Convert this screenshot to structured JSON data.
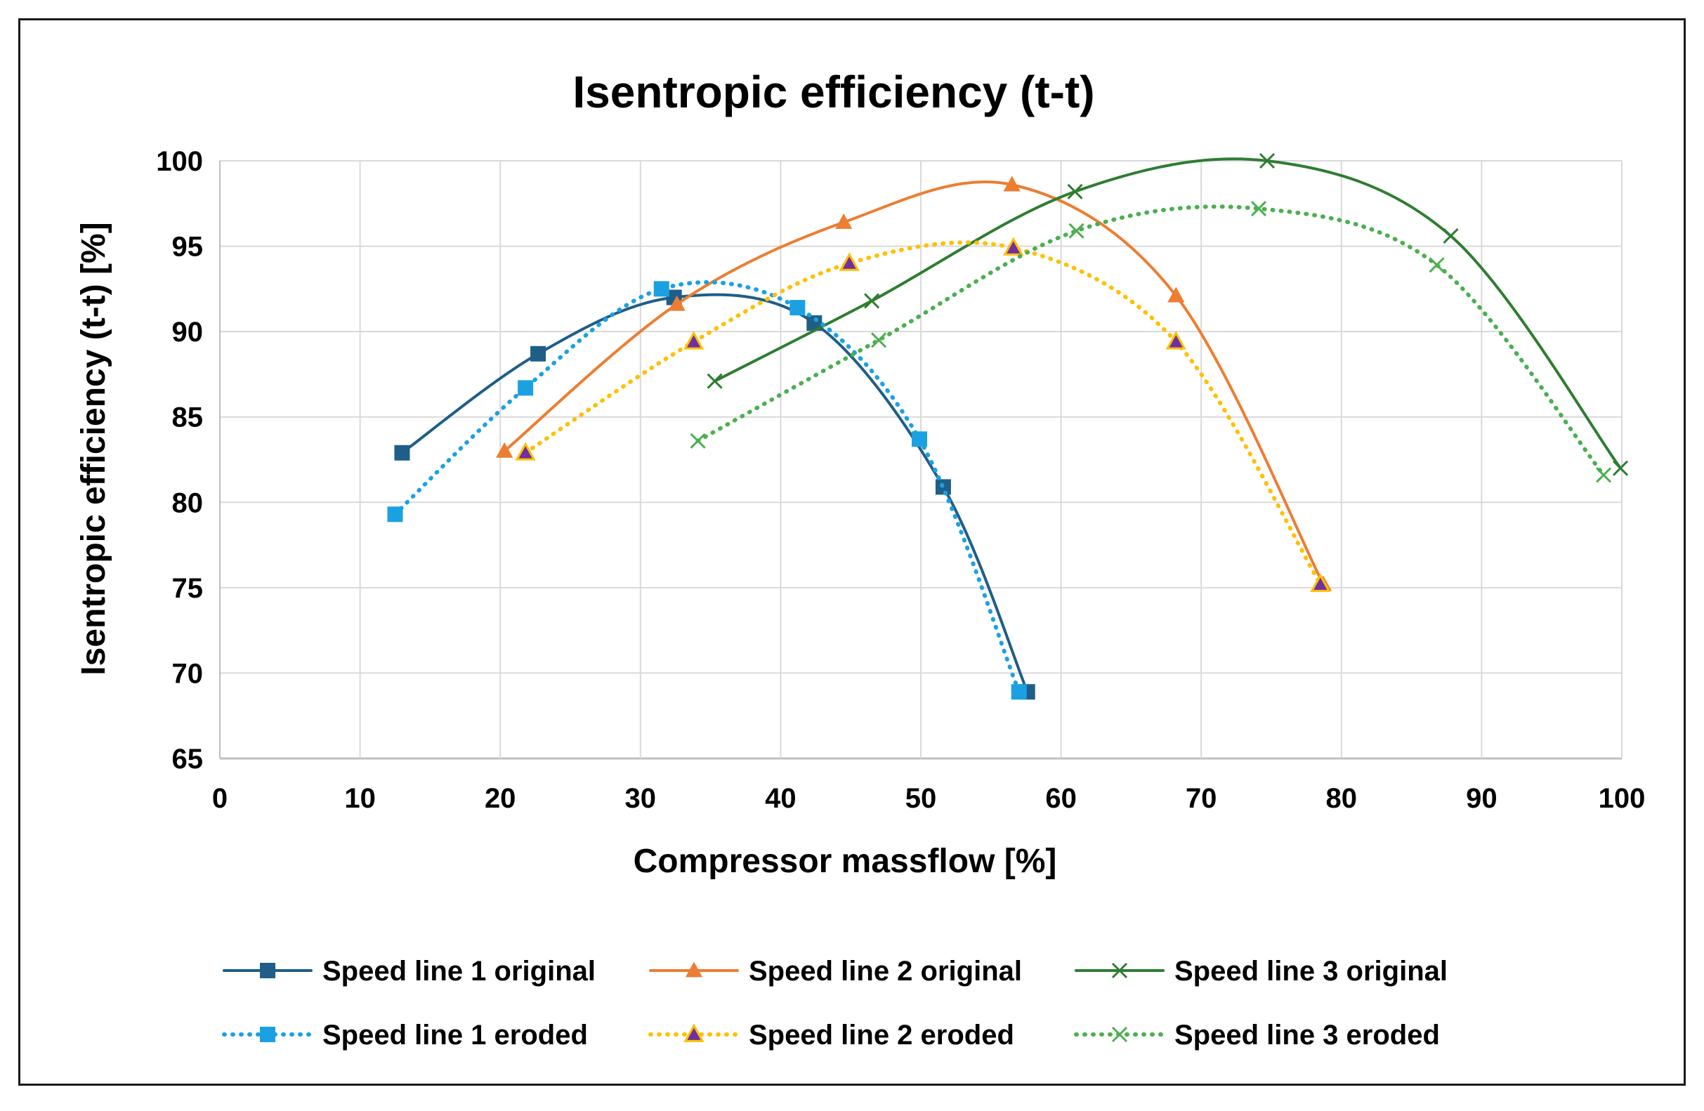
{
  "chart_data": {
    "type": "line",
    "title": "Isentropic efficiency (t-t)",
    "xlabel": "Compressor massflow [%]",
    "ylabel": "Isentropic efficiency (t-t) [%]",
    "xlim": [
      0,
      100
    ],
    "ylim": [
      65,
      100
    ],
    "xticks": [
      0,
      10,
      20,
      30,
      40,
      50,
      60,
      70,
      80,
      90,
      100
    ],
    "yticks": [
      65,
      70,
      75,
      80,
      85,
      90,
      95,
      100
    ],
    "grid": true,
    "legend_position": "bottom",
    "series": [
      {
        "name": "Speed line 1 original",
        "color": "#1f5e87",
        "line_style": "solid",
        "marker": "square",
        "x": [
          13.0,
          22.7,
          32.4,
          42.4,
          51.6,
          57.6
        ],
        "y": [
          82.9,
          88.7,
          92.0,
          90.5,
          80.9,
          68.9
        ]
      },
      {
        "name": "Speed line 2 original",
        "color": "#ed7d31",
        "line_style": "solid",
        "marker": "triangle",
        "x": [
          20.3,
          32.6,
          44.5,
          56.5,
          68.2,
          78.7
        ],
        "y": [
          83.0,
          91.6,
          96.4,
          98.6,
          92.1,
          75.2
        ]
      },
      {
        "name": "Speed line 3 original",
        "color": "#2e7d32",
        "line_style": "solid",
        "marker": "x",
        "x": [
          35.3,
          46.5,
          61.0,
          74.7,
          87.8,
          99.9
        ],
        "y": [
          87.1,
          91.8,
          98.2,
          100.0,
          95.6,
          82.0
        ]
      },
      {
        "name": "Speed line 1 eroded",
        "color": "#1ba1e2",
        "line_style": "dotted",
        "marker": "square",
        "x": [
          12.5,
          21.8,
          31.5,
          41.2,
          49.9,
          57.0
        ],
        "y": [
          79.3,
          86.7,
          92.5,
          91.4,
          83.7,
          68.9
        ]
      },
      {
        "name": "Speed line 2 eroded",
        "color": "#ffc000",
        "marker_fill": "#7030a0",
        "line_style": "dotted",
        "marker": "triangle",
        "x": [
          21.8,
          33.8,
          44.9,
          56.6,
          68.2,
          78.5
        ],
        "y": [
          82.9,
          89.4,
          94.0,
          94.9,
          89.4,
          75.2
        ]
      },
      {
        "name": "Speed line 3 eroded",
        "color": "#4caf50",
        "line_style": "dotted",
        "marker": "x",
        "x": [
          34.1,
          47.0,
          61.1,
          74.1,
          86.8,
          98.7
        ],
        "y": [
          83.6,
          89.5,
          95.9,
          97.2,
          93.9,
          81.6
        ]
      }
    ]
  }
}
